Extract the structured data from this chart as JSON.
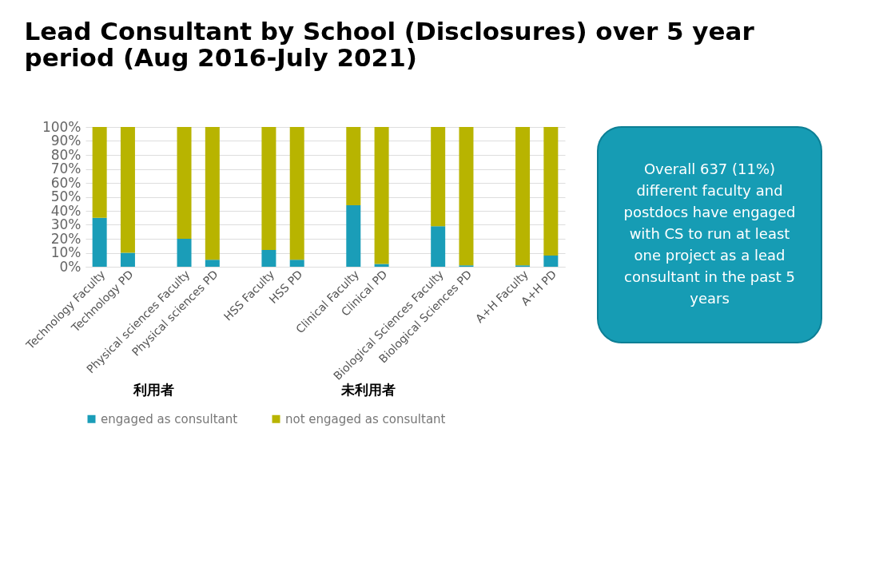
{
  "chart_data": {
    "type": "bar",
    "stacked": true,
    "title": "Lead Consultant by School (Disclosures) over 5 year period (Aug 2016-July 2021)",
    "categories": [
      "Technology Faculty",
      "Technology PD",
      null,
      "Physical sciences Faculty",
      "Physical sciences PD",
      null,
      "HSS Faculty",
      "HSS PD",
      null,
      "Clinical Faculty",
      "Clinical PD",
      null,
      "Biological Sciences Faculty",
      "Biological Sciences PD",
      null,
      "A+H Faculty",
      "A+H PD"
    ],
    "series": [
      {
        "name": "engaged as consultant",
        "color": "#1a9db8",
        "values": [
          35,
          10,
          null,
          20,
          5,
          null,
          12,
          5,
          null,
          44,
          2,
          null,
          29,
          1,
          null,
          1,
          8
        ]
      },
      {
        "name": "not engaged as consultant",
        "color": "#b8b400",
        "values": [
          65,
          90,
          null,
          80,
          95,
          null,
          88,
          95,
          null,
          56,
          98,
          null,
          71,
          99,
          null,
          99,
          92
        ]
      }
    ],
    "ylim": [
      0,
      100
    ],
    "yticks": [
      {
        "value": 0,
        "label": "0%"
      },
      {
        "value": 10,
        "label": "10%"
      },
      {
        "value": 20,
        "label": "20%"
      },
      {
        "value": 30,
        "label": "30%"
      },
      {
        "value": 40,
        "label": "40%"
      },
      {
        "value": 50,
        "label": "50%"
      },
      {
        "value": 60,
        "label": "60%"
      },
      {
        "value": 70,
        "label": "70%"
      },
      {
        "value": 80,
        "label": "80%"
      },
      {
        "value": 90,
        "label": "90%"
      },
      {
        "value": 100,
        "label": "100%"
      }
    ],
    "grid": "y",
    "legend": "bottom",
    "annotations": [
      "Overall 637 (11%) different faculty and postdocs have engaged with CS to run at least one project as a lead consultant in the past 5 years",
      "利用者",
      "未利用者"
    ]
  }
}
